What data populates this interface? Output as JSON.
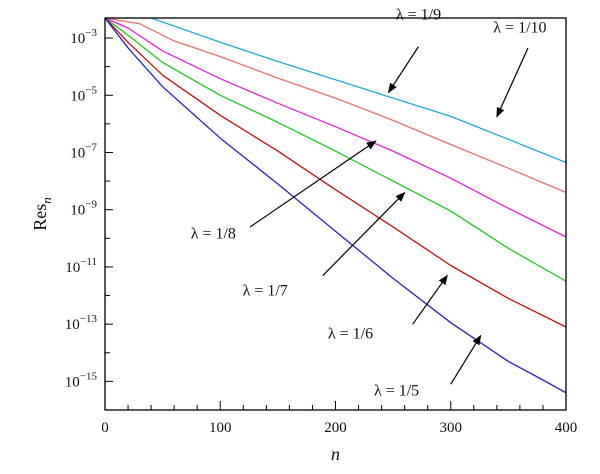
{
  "chart_data": {
    "type": "line",
    "title": "",
    "xlabel": "n",
    "ylabel_base": "Res",
    "ylabel_sub": "n",
    "xlim": [
      0,
      400
    ],
    "ylog_exponent_range": [
      -16,
      -2.3
    ],
    "xticks": [
      0,
      100,
      200,
      300,
      400
    ],
    "yticks": [
      {
        "exp": -3,
        "base": "10",
        "sup": "−3"
      },
      {
        "exp": -5,
        "base": "10",
        "sup": "−5"
      },
      {
        "exp": -7,
        "base": "10",
        "sup": "−7"
      },
      {
        "exp": -9,
        "base": "10",
        "sup": "−9"
      },
      {
        "exp": -11,
        "base": "10",
        "sup": "−11"
      },
      {
        "exp": -13,
        "base": "10",
        "sup": "−13"
      },
      {
        "exp": -15,
        "base": "10",
        "sup": "−15"
      }
    ],
    "grid": false,
    "series": [
      {
        "name": "λ = 1/10",
        "color": "#1fa9d8",
        "x": [
          0,
          40,
          100,
          150,
          200,
          250,
          300,
          350,
          400
        ],
        "log10_y": [
          -2.3,
          -2.3,
          -3.15,
          -3.82,
          -4.46,
          -5.1,
          -5.74,
          -6.54,
          -7.35
        ]
      },
      {
        "name": "λ = 1/9",
        "color": "#e8706a",
        "x": [
          0,
          30,
          60,
          100,
          150,
          200,
          250,
          300,
          350,
          400
        ],
        "log10_y": [
          -2.3,
          -2.5,
          -3.1,
          -3.65,
          -4.4,
          -5.1,
          -5.88,
          -6.72,
          -7.55,
          -8.4
        ]
      },
      {
        "name": "λ = 1/8",
        "color": "#e020d8",
        "x": [
          0,
          20,
          50,
          100,
          150,
          200,
          250,
          300,
          350,
          400
        ],
        "log10_y": [
          -2.3,
          -2.65,
          -3.45,
          -4.42,
          -5.28,
          -6.1,
          -6.95,
          -7.9,
          -8.95,
          -9.95
        ]
      },
      {
        "name": "λ = 1/7",
        "color": "#1ec81e",
        "x": [
          0,
          20,
          50,
          100,
          150,
          200,
          250,
          300,
          350,
          400
        ],
        "log10_y": [
          -2.3,
          -2.9,
          -3.85,
          -5.0,
          -5.95,
          -6.95,
          -8.0,
          -9.05,
          -10.35,
          -11.5
        ]
      },
      {
        "name": "λ = 1/6",
        "color": "#c01010",
        "x": [
          0,
          20,
          50,
          100,
          150,
          200,
          250,
          300,
          350,
          400
        ],
        "log10_y": [
          -2.3,
          -3.15,
          -4.3,
          -5.7,
          -6.95,
          -8.3,
          -9.6,
          -10.95,
          -12.1,
          -13.1
        ]
      },
      {
        "name": "λ = 1/5",
        "color": "#2222c0",
        "x": [
          0,
          20,
          50,
          100,
          150,
          200,
          250,
          300,
          350,
          380,
          400
        ],
        "log10_y": [
          -2.3,
          -3.35,
          -4.7,
          -6.5,
          -8.1,
          -9.75,
          -11.4,
          -12.95,
          -14.3,
          -14.95,
          -15.4
        ]
      }
    ],
    "annotations": [
      {
        "text": "λ = 1/10",
        "tx": 360,
        "ty": -2.8,
        "ax1": 367,
        "ay1": -3.35,
        "ax2": 340,
        "ay2": -5.75
      },
      {
        "text": "λ = 1/9",
        "tx": 272,
        "ty": -2.35,
        "ax1": 272,
        "ay1": -3.3,
        "ax2": 246,
        "ay2": -4.9
      },
      {
        "text": "λ = 1/8",
        "tx": 94,
        "ty": -10.0,
        "ax1": 126,
        "ay1": -9.6,
        "ax2": 235,
        "ay2": -6.6
      },
      {
        "text": "λ = 1/7",
        "tx": 139,
        "ty": -12.0,
        "ax1": 189,
        "ay1": -11.3,
        "ax2": 260,
        "ay2": -8.4
      },
      {
        "text": "λ = 1/6",
        "tx": 213,
        "ty": -13.5,
        "ax1": 267,
        "ay1": -13.0,
        "ax2": 297,
        "ay2": -11.3
      },
      {
        "text": "λ = 1/5",
        "tx": 253,
        "ty": -15.5,
        "ax1": 300,
        "ay1": -15.1,
        "ax2": 326,
        "ay2": -13.4
      }
    ]
  }
}
